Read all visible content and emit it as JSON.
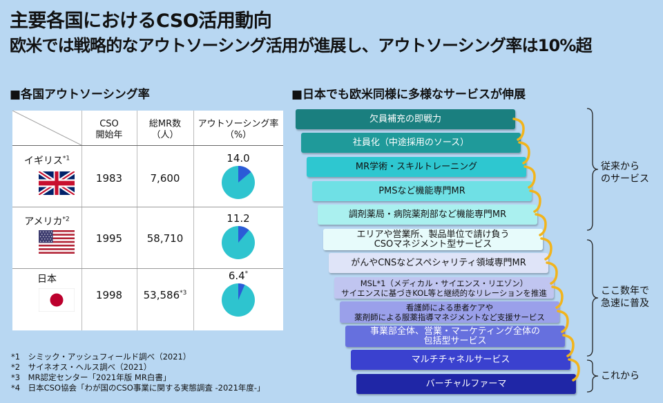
{
  "title": "主要各国におけるCSO活用動向",
  "subtitle": "欧米では戦略的なアウトソーシング活用が進展し、アウトソーシング率は10%超",
  "left_heading": "■各国アウトソーシング率",
  "right_heading": "■日本でも欧米同様に多様なサービスが伸展",
  "table": {
    "col1": "CSO\n開始年",
    "col2": "総MR数\n（人）",
    "col3": "アウトソーシング率\n（%）",
    "rows": [
      {
        "country": "イギリス",
        "note": "*1",
        "start": "1983",
        "mr": "7,600",
        "mr_note": "",
        "rate_label": "14.0",
        "rate_note": "",
        "rate": 14.0,
        "flag": "uk-flag"
      },
      {
        "country": "アメリカ",
        "note": "*2",
        "start": "1995",
        "mr": "58,710",
        "mr_note": "",
        "rate_label": "11.2",
        "rate_note": "",
        "rate": 11.2,
        "flag": "us-flag"
      },
      {
        "country": "日本",
        "note": "",
        "start": "1998",
        "mr": "53,586",
        "mr_note": "*3",
        "rate_label": "6.4",
        "rate_note": "*",
        "rate": 6.4,
        "flag": "japan-flag"
      }
    ]
  },
  "footnotes": [
    "*1　シミック・アッシュフィールド調べ（2021）",
    "*2　サイネオス・ヘルス調べ（2021）",
    "*3　MR認定センター「2021年版 MR白書」",
    "*4　日本CSO協会「わが国のCSO事業に関する実態調査 -2021年度-」"
  ],
  "services": [
    {
      "l1": "欠員補充の即戦力",
      "l2": ""
    },
    {
      "l1": "社員化（中途採用のソース）",
      "l2": ""
    },
    {
      "l1": "MR学術・スキルトレーニング",
      "l2": ""
    },
    {
      "l1": "PMSなど機能専門MR",
      "l2": ""
    },
    {
      "l1": "調剤薬局・病院薬剤部など機能専門MR",
      "l2": ""
    },
    {
      "l1": "エリアや営業所、製品単位で請け負う",
      "l2": "CSOマネジメント型サービス"
    },
    {
      "l1": "がんやCNSなどスペシャリティ領域専門MR",
      "l2": ""
    },
    {
      "l1": "MSL*1（メディカル・サイエンス・リエゾン）",
      "l2": "サイエンスに基づきKOL等と継続的なリレーションを推進"
    },
    {
      "l1": "看護師による患者ケアや",
      "l2": "薬剤師による服薬指導マネジメントなど支援サービス"
    },
    {
      "l1": "事業部全体、営業・マーケティング全体の",
      "l2": "包括型サービス"
    },
    {
      "l1": "マルチチャネルサービス",
      "l2": ""
    },
    {
      "l1": "バーチャルファーマ",
      "l2": ""
    }
  ],
  "groups": [
    {
      "label": "従来から\nのサービス"
    },
    {
      "label": "ここ数年で\n急速に普及"
    },
    {
      "label": "これから"
    }
  ],
  "colors": {
    "pie_fill": "#2ec4cf",
    "pie_slice": "#2b5bd7",
    "background": "#b8d7f2"
  }
}
